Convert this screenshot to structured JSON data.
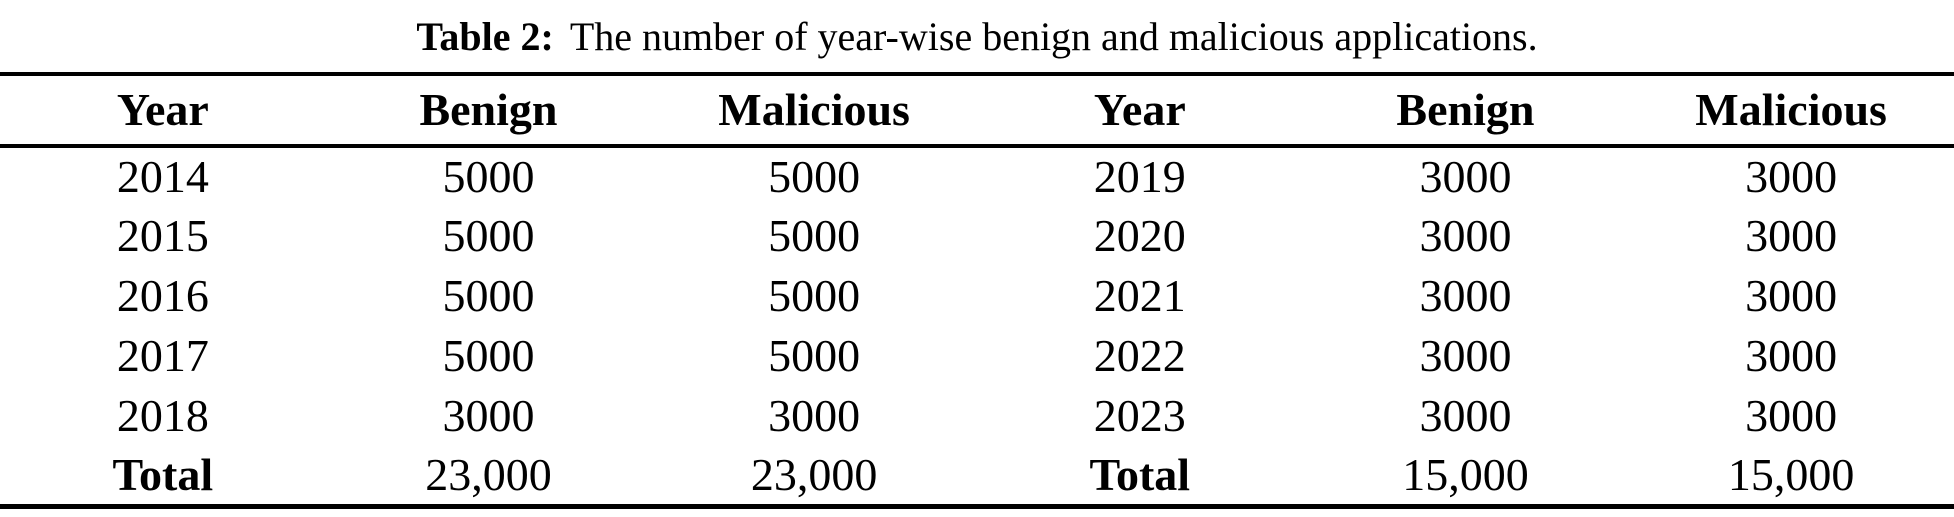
{
  "caption": {
    "label": "Table 2:",
    "text": "The number of year-wise benign and malicious applications."
  },
  "table": {
    "columns": [
      "Year",
      "Benign",
      "Malicious",
      "Year",
      "Benign",
      "Malicious"
    ],
    "rows": [
      [
        "2014",
        "5000",
        "5000",
        "2019",
        "3000",
        "3000"
      ],
      [
        "2015",
        "5000",
        "5000",
        "2020",
        "3000",
        "3000"
      ],
      [
        "2016",
        "5000",
        "5000",
        "2021",
        "3000",
        "3000"
      ],
      [
        "2017",
        "5000",
        "5000",
        "2022",
        "3000",
        "3000"
      ],
      [
        "2018",
        "3000",
        "3000",
        "2023",
        "3000",
        "3000"
      ],
      [
        "Total",
        "23,000",
        "23,000",
        "Total",
        "15,000",
        "15,000"
      ]
    ],
    "colors": {
      "text": "#000000",
      "background": "#ffffff",
      "rule": "#000000"
    }
  }
}
